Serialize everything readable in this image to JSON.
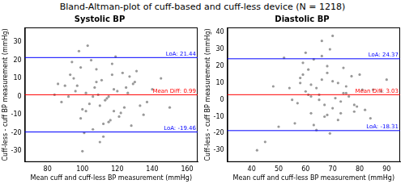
{
  "title": "Bland-Altman-plot of cuff-based and cuff-less device (N = 1218)",
  "chart_data": [
    {
      "type": "scatter",
      "title": "Systolic BP",
      "x_label": "Mean cuff and cuff-less BP measurement (mmHg)",
      "y_label": "Cuff-less - cuff BP measurement (mmHg)",
      "color": "#999999",
      "marker": "circle",
      "grid": false,
      "xlim": [
        67,
        166
      ],
      "xticks": [
        80,
        100,
        120,
        140,
        160
      ],
      "ylim": [
        -36,
        38
      ],
      "yticks": [
        -30,
        -20,
        -10,
        0,
        10,
        20,
        30
      ],
      "x": [
        102,
        110,
        95,
        118,
        125,
        108,
        99,
        115,
        130,
        88,
        105,
        112,
        120,
        97,
        135,
        101,
        93,
        117,
        124,
        109,
        113,
        86,
        140,
        106,
        98,
        122,
        127,
        104,
        111,
        116,
        92,
        131,
        100,
        119,
        107,
        128,
        96,
        114,
        145,
        103,
        121,
        90,
        126,
        110,
        99,
        133,
        108,
        115,
        84,
        123,
        137,
        102,
        118,
        94,
        112,
        129,
        106,
        150,
        117,
        100
      ],
      "values": [
        2,
        -5,
        10,
        -8,
        5,
        15,
        -12,
        0,
        8,
        -3,
        20,
        -15,
        3,
        6,
        -10,
        -20,
        12,
        18,
        -6,
        1,
        -2,
        7,
        4,
        -18,
        25,
        -9,
        11,
        -4,
        9,
        -13,
        0,
        14,
        -7,
        22,
        5,
        -16,
        3,
        -1,
        10,
        28,
        -11,
        6,
        2,
        -25,
        16,
        -5,
        8,
        -14,
        1,
        13,
        -3,
        -8,
        4,
        19,
        -22,
        7,
        0,
        -6,
        12,
        -30
      ],
      "reference_lines": [
        {
          "value": 21.44,
          "label": "LoA: 21.44",
          "color": "#0000ff"
        },
        {
          "value": 0.99,
          "label": "Mean Diff: 0.99",
          "color": "#ff0000"
        },
        {
          "value": -19.46,
          "label": "LoA: -19.46",
          "color": "#0000ff"
        }
      ]
    },
    {
      "type": "scatter",
      "title": "Diastolic BP",
      "x_label": "Mean cuff and cuff-less BP measurement (mmHg)",
      "y_label": "Cuff-less - cuff BP measurement (mmHg)",
      "color": "#999999",
      "marker": "circle",
      "grid": false,
      "xlim": [
        31,
        95
      ],
      "xticks": [
        40,
        50,
        60,
        70,
        80,
        90
      ],
      "ylim": [
        -37,
        43
      ],
      "yticks": [
        -30,
        -20,
        -10,
        0,
        10,
        20,
        30,
        40
      ],
      "x": [
        65,
        70,
        58,
        75,
        62,
        80,
        55,
        68,
        72,
        60,
        66,
        78,
        52,
        63,
        85,
        69,
        57,
        74,
        61,
        67,
        71,
        48,
        64,
        77,
        59,
        82,
        66,
        73,
        54,
        69,
        62,
        76,
        45,
        68,
        79,
        60,
        70,
        88,
        56,
        65,
        73,
        63,
        81,
        58,
        67,
        42,
        74,
        61,
        84,
        70,
        64,
        50,
        72,
        66,
        78,
        59,
        68,
        75,
        62,
        90
      ],
      "values": [
        3,
        -5,
        10,
        8,
        -8,
        15,
        0,
        20,
        -12,
        5,
        12,
        -3,
        25,
        -15,
        6,
        30,
        -2,
        4,
        18,
        -10,
        1,
        8,
        -18,
        14,
        22,
        -6,
        35,
        -1,
        7,
        -20,
        9,
        2,
        -25,
        16,
        -4,
        28,
        11,
        5,
        -14,
        0,
        -8,
        24,
        6,
        13,
        -3,
        -30,
        19,
        3,
        -11,
        38,
        7,
        -16,
        10,
        26,
        -7,
        15,
        -9,
        4,
        2,
        12
      ],
      "reference_lines": [
        {
          "value": 24.37,
          "label": "LoA: 24.37",
          "color": "#0000ff"
        },
        {
          "value": 3.03,
          "label": "Mean Diff: 3.03",
          "color": "#ff0000"
        },
        {
          "value": -18.31,
          "label": "LoA: -18.31",
          "color": "#0000ff"
        }
      ]
    }
  ]
}
